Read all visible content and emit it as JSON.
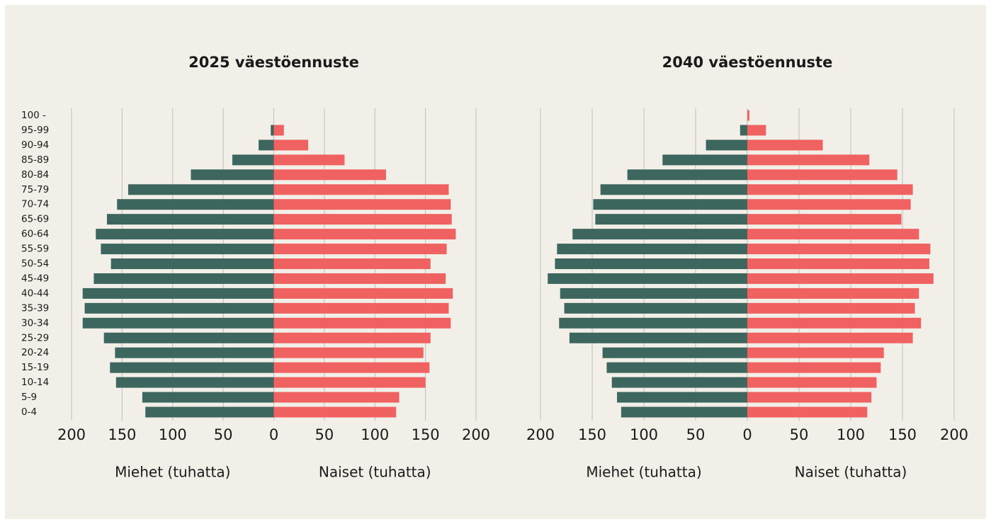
{
  "chart_data": [
    {
      "type": "pyramid",
      "title": "2025 väestöennuste",
      "categories": [
        "100 -",
        "95-99",
        "90-94",
        "85-89",
        "80-84",
        "75-79",
        "70-74",
        "65-69",
        "60-64",
        "55-59",
        "50-54",
        "45-49",
        "40-44",
        "35-39",
        "30-34",
        "25-29",
        "20-24",
        "15-19",
        "10-14",
        "5-9",
        "0-4"
      ],
      "series": [
        {
          "name": "Miehet (tuhatta)",
          "color": "#3d675e",
          "values": [
            0,
            3,
            15,
            41,
            82,
            144,
            155,
            165,
            176,
            171,
            161,
            178,
            189,
            187,
            189,
            168,
            157,
            162,
            156,
            130,
            127
          ]
        },
        {
          "name": "Naiset (tuhatta)",
          "color": "#f06262",
          "values": [
            0,
            10,
            34,
            70,
            111,
            173,
            175,
            176,
            180,
            171,
            155,
            170,
            177,
            173,
            175,
            155,
            148,
            154,
            150,
            124,
            121
          ]
        }
      ],
      "xlim": [
        -200,
        200
      ],
      "xticks": [
        {
          "value": -200,
          "label": "200"
        },
        {
          "value": -150,
          "label": "150"
        },
        {
          "value": -100,
          "label": "100"
        },
        {
          "value": -50,
          "label": "50"
        },
        0,
        50,
        100,
        150,
        200
      ],
      "grid": true
    },
    {
      "type": "pyramid",
      "title": "2040 väestöennuste",
      "series": [
        {
          "name": "Miehet (tuhatta)",
          "color": "#3d675e",
          "values": [
            0,
            7,
            40,
            82,
            116,
            142,
            149,
            147,
            169,
            184,
            186,
            193,
            181,
            177,
            182,
            172,
            140,
            136,
            131,
            126,
            122
          ]
        },
        {
          "name": "Naiset (tuhatta)",
          "color": "#f06262",
          "values": [
            2,
            18,
            73,
            118,
            145,
            160,
            158,
            149,
            166,
            177,
            176,
            180,
            166,
            162,
            168,
            160,
            132,
            129,
            125,
            120,
            116
          ]
        }
      ],
      "xlim": [
        -200,
        200
      ],
      "xticks": [
        {
          "value": -200,
          "label": "200"
        },
        {
          "value": -150,
          "label": "150"
        },
        {
          "value": -100,
          "label": "100"
        },
        {
          "value": -50,
          "label": "50"
        },
        0,
        50,
        100,
        150,
        200
      ],
      "grid": true
    }
  ]
}
